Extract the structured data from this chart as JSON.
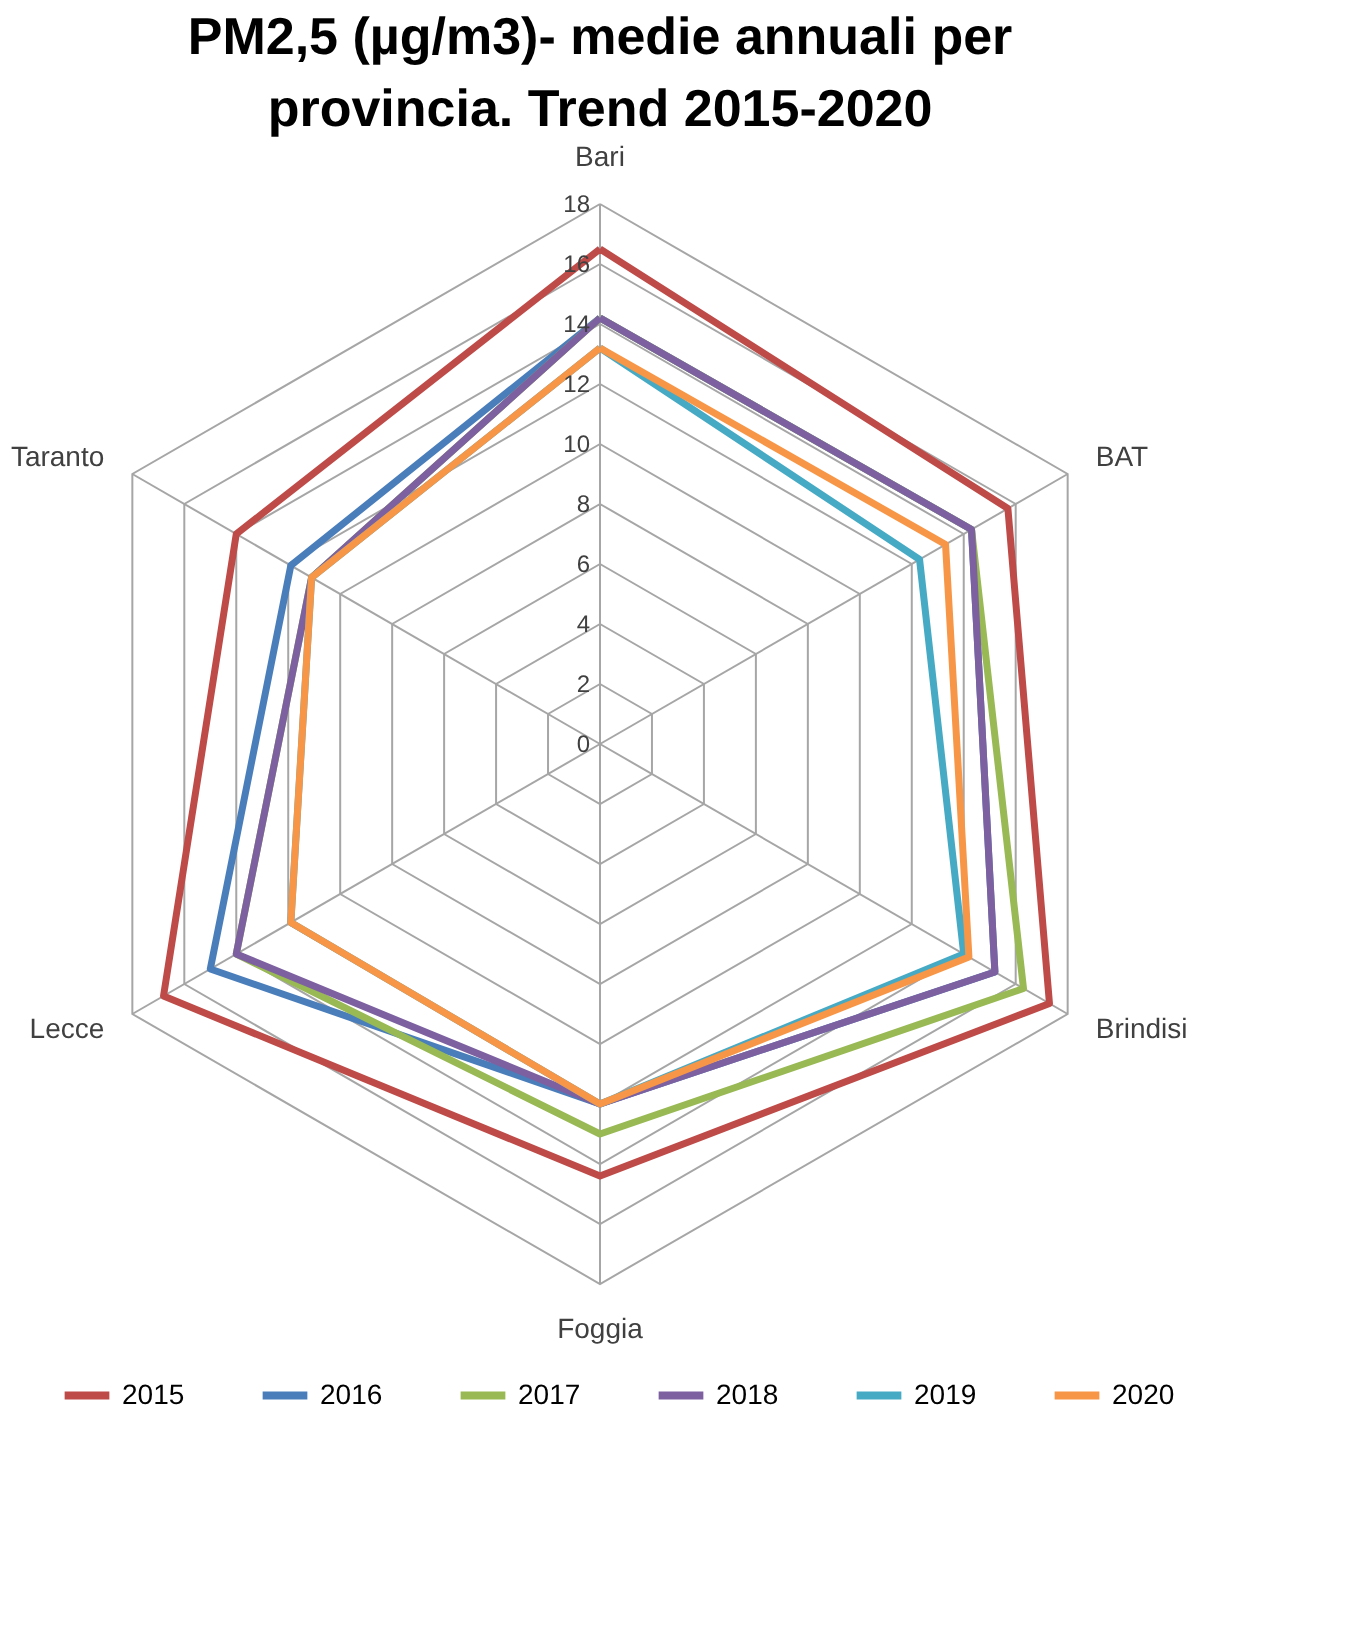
{
  "chart_data": {
    "type": "radar",
    "title": "PM2,5 (µg/m3)- medie annuali per\nprovincia. Trend 2015-2020",
    "categories": [
      "Bari",
      "BAT",
      "Brindisi",
      "Foggia",
      "Lecce",
      "Taranto"
    ],
    "ylim": [
      0,
      18
    ],
    "yticks": [
      0,
      2,
      4,
      6,
      8,
      10,
      12,
      14,
      16,
      18
    ],
    "grid": true,
    "legend": "bottom",
    "series": [
      {
        "name": "2015",
        "color": "#be4b48",
        "values": [
          16.5,
          15.7,
          17.3,
          14.4,
          16.8,
          14.0
        ]
      },
      {
        "name": "2016",
        "color": "#4a7ebb",
        "values": [
          14.2,
          14.3,
          15.2,
          12.0,
          15.0,
          11.9
        ]
      },
      {
        "name": "2017",
        "color": "#98b954",
        "values": [
          14.2,
          14.3,
          16.3,
          13.0,
          14.0,
          11.1
        ]
      },
      {
        "name": "2018",
        "color": "#7d60a0",
        "values": [
          14.2,
          14.3,
          15.2,
          12.0,
          14.0,
          11.1
        ]
      },
      {
        "name": "2019",
        "color": "#46aac5",
        "values": [
          13.2,
          12.3,
          14.0,
          12.0,
          11.9,
          11.1
        ]
      },
      {
        "name": "2020",
        "color": "#f79646",
        "values": [
          13.2,
          13.3,
          14.2,
          12.0,
          11.9,
          11.1
        ]
      }
    ]
  }
}
